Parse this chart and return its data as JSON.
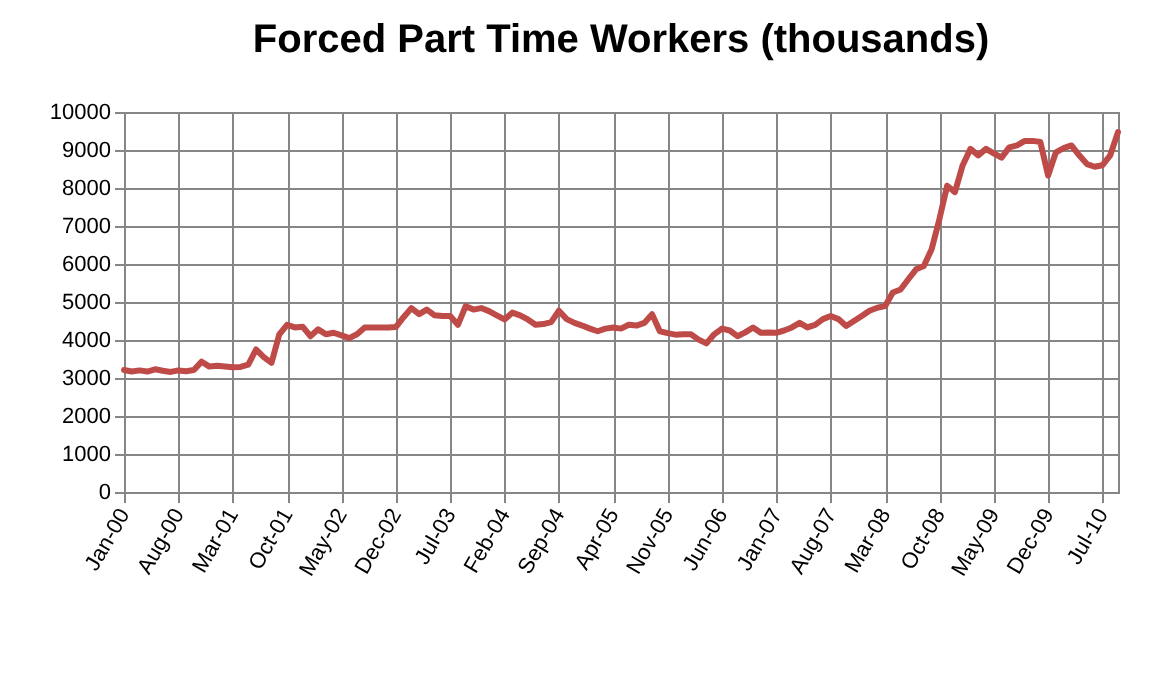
{
  "chart_data": {
    "type": "line",
    "title": "Forced Part Time Workers (thousands)",
    "categories": [
      "Jan-00",
      null,
      null,
      null,
      null,
      null,
      null,
      "Aug-00",
      null,
      null,
      null,
      null,
      null,
      null,
      "Mar-01",
      null,
      null,
      null,
      null,
      null,
      null,
      "Oct-01",
      null,
      null,
      null,
      null,
      null,
      null,
      "May-02",
      null,
      null,
      null,
      null,
      null,
      null,
      "Dec-02",
      null,
      null,
      null,
      null,
      null,
      null,
      "Jul-03",
      null,
      null,
      null,
      null,
      null,
      null,
      "Feb-04",
      null,
      null,
      null,
      null,
      null,
      null,
      "Sep-04",
      null,
      null,
      null,
      null,
      null,
      null,
      "Apr-05",
      null,
      null,
      null,
      null,
      null,
      null,
      "Nov-05",
      null,
      null,
      null,
      null,
      null,
      null,
      "Jun-06",
      null,
      null,
      null,
      null,
      null,
      null,
      "Jan-07",
      null,
      null,
      null,
      null,
      null,
      null,
      "Aug-07",
      null,
      null,
      null,
      null,
      null,
      null,
      "Mar-08",
      null,
      null,
      null,
      null,
      null,
      null,
      "Oct-08",
      null,
      null,
      null,
      null,
      null,
      null,
      "May-09",
      null,
      null,
      null,
      null,
      null,
      null,
      "Dec-09",
      null,
      null,
      null,
      null,
      null,
      null,
      "Jul-10",
      null,
      null
    ],
    "series": [
      {
        "color": "#be4b48",
        "values": [
          3210,
          3170,
          3200,
          3170,
          3230,
          3190,
          3160,
          3200,
          3180,
          3210,
          3430,
          3300,
          3320,
          3300,
          3280,
          3290,
          3350,
          3750,
          3550,
          3400,
          4150,
          4400,
          4330,
          4350,
          4100,
          4280,
          4150,
          4190,
          4120,
          4050,
          4150,
          4330,
          4330,
          4330,
          4330,
          4340,
          4600,
          4840,
          4680,
          4800,
          4650,
          4630,
          4630,
          4400,
          4890,
          4800,
          4840,
          4760,
          4650,
          4540,
          4720,
          4650,
          4540,
          4400,
          4420,
          4470,
          4770,
          4550,
          4450,
          4380,
          4300,
          4230,
          4300,
          4330,
          4300,
          4400,
          4380,
          4450,
          4680,
          4230,
          4180,
          4140,
          4150,
          4150,
          4010,
          3910,
          4150,
          4300,
          4250,
          4100,
          4200,
          4330,
          4190,
          4200,
          4190,
          4250,
          4330,
          4450,
          4330,
          4400,
          4550,
          4630,
          4550,
          4370,
          4500,
          4630,
          4770,
          4850,
          4890,
          5250,
          5330,
          5600,
          5860,
          5950,
          6390,
          7180,
          8060,
          7890,
          8600,
          9030,
          8860,
          9030,
          8910,
          8800,
          9070,
          9120,
          9240,
          9240,
          9210,
          8330,
          8940,
          9050,
          9120,
          8860,
          8630,
          8560,
          8600,
          8860,
          9470
        ]
      }
    ],
    "ylim": [
      0,
      10000
    ],
    "yticks": [
      0,
      1000,
      2000,
      3000,
      4000,
      5000,
      6000,
      7000,
      8000,
      9000,
      10000
    ],
    "grid": true
  }
}
